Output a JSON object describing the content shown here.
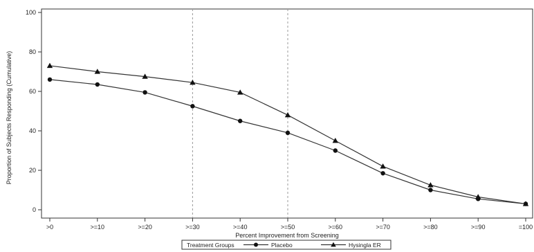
{
  "chart_data": {
    "type": "line",
    "title": "",
    "xlabel": "Percent Improvement from Screening",
    "ylabel": "Proportion of Subjects Responding (Cumulative)",
    "categories": [
      ">0",
      ">=10",
      ">=20",
      ">=30",
      ">=40",
      ">=50",
      ">=60",
      ">=70",
      ">=80",
      ">=90",
      "=100"
    ],
    "ylim": [
      0,
      100
    ],
    "yticks": [
      0,
      20,
      40,
      60,
      80,
      100
    ],
    "reference_lines_at": [
      ">=30",
      ">=50"
    ],
    "series": [
      {
        "name": "Placebo",
        "marker": "circle",
        "values": [
          66,
          63.5,
          59.5,
          52.5,
          45,
          39,
          30,
          18.5,
          10,
          5.5,
          3
        ]
      },
      {
        "name": "Hysingla ER",
        "marker": "triangle",
        "values": [
          73,
          70,
          67.5,
          64.5,
          59.5,
          48,
          35,
          22,
          12.5,
          6.5,
          3
        ]
      }
    ],
    "legend": {
      "title": "Treatment Groups",
      "placement": "bottom-center"
    },
    "grid": false
  }
}
